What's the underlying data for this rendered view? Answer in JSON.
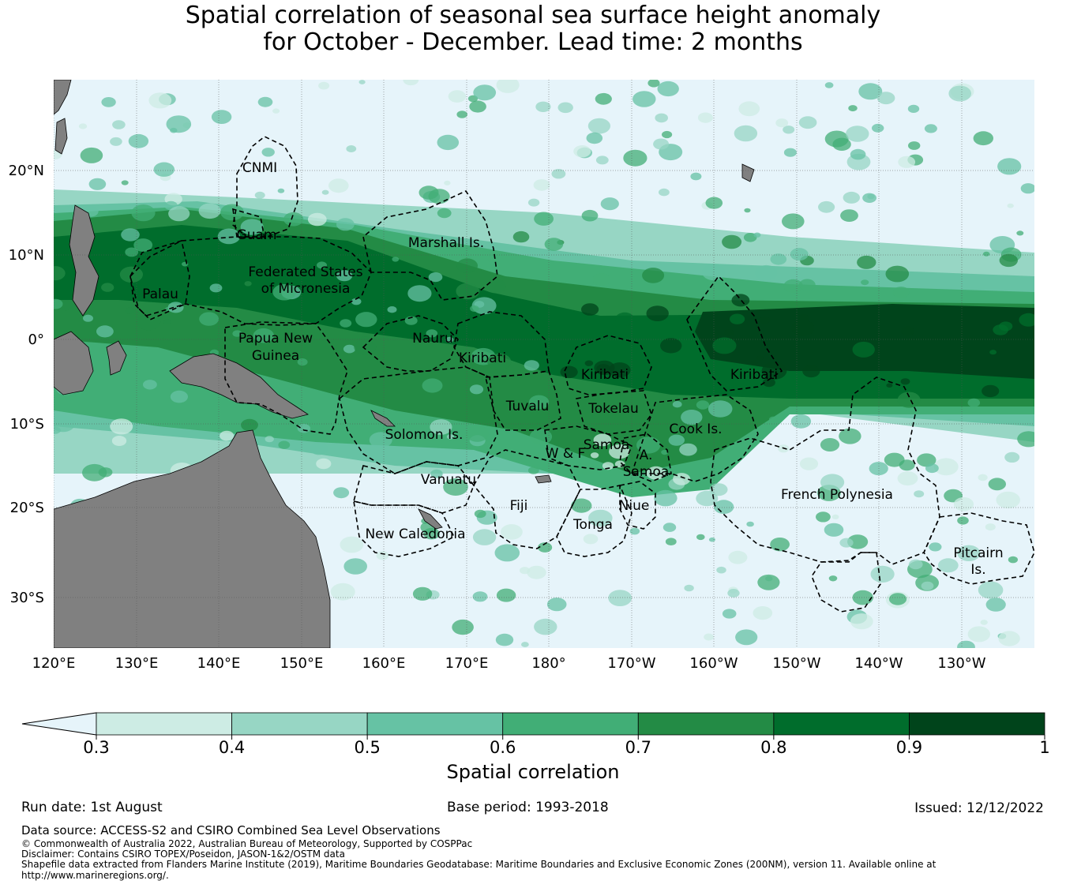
{
  "title": {
    "line1": "Spatial correlation of seasonal sea surface height anomaly",
    "line2": "for October - December. Lead time: 2 months"
  },
  "colors": {
    "ocean_low": "#e6f4fa",
    "land": "#808080",
    "levels": [
      "#cdece4",
      "#97d6c4",
      "#66c2a4",
      "#41ae76",
      "#238b45",
      "#006d2c",
      "#00441b"
    ]
  },
  "map": {
    "lat_labels": [
      "20°N",
      "10°N",
      "0°",
      "10°S",
      "20°S",
      "30°S"
    ],
    "lon_labels": [
      "120°E",
      "130°E",
      "140°E",
      "150°E",
      "160°E",
      "170°E",
      "180°",
      "170°W",
      "160°W",
      "150°W",
      "140°W",
      "130°W"
    ],
    "regions": [
      {
        "name": "CNMI"
      },
      {
        "name": "Guam"
      },
      {
        "name": "Marshall Is."
      },
      {
        "name": "Federated States"
      },
      {
        "name": "of Micronesia"
      },
      {
        "name": "Palau"
      },
      {
        "name": "Papua New"
      },
      {
        "name": "Guinea"
      },
      {
        "name": "Nauru"
      },
      {
        "name": "Kiribati"
      },
      {
        "name": "Kiribati"
      },
      {
        "name": "Kiribati"
      },
      {
        "name": "Tuvalu"
      },
      {
        "name": "Tokelau"
      },
      {
        "name": "Solomon Is."
      },
      {
        "name": "Samoa"
      },
      {
        "name": "W & F"
      },
      {
        "name": "A."
      },
      {
        "name": "Samoa"
      },
      {
        "name": "Cook Is."
      },
      {
        "name": "Vanuatu"
      },
      {
        "name": "Fiji"
      },
      {
        "name": "Niue"
      },
      {
        "name": "Tonga"
      },
      {
        "name": "French Polynesia"
      },
      {
        "name": "New Caledonia"
      },
      {
        "name": "Pitcairn"
      },
      {
        "name": "Is."
      }
    ]
  },
  "colorbar": {
    "ticks": [
      "0.3",
      "0.4",
      "0.5",
      "0.6",
      "0.7",
      "0.8",
      "0.9",
      "1"
    ],
    "label": "Spatial correlation"
  },
  "footer": {
    "run_date": "Run date: 1st August",
    "base_period": "Base period: 1993-2018",
    "issued": "Issued: 12/12/2022",
    "data_source": "Data source: ACCESS-S2 and CSIRO Combined Sea Level Observations",
    "copyright": "© Commonwealth of Australia 2022, Australian Bureau of Meteorology, Supported by COSPPac",
    "disclaimer": "Disclaimer: Contains CSIRO TOPEX/Poseidon, JASON-1&2/OSTM data",
    "shapefile1": "Shapefile data extracted from Flanders Marine Institute (2019), Maritime Boundaries Geodatabase: Maritime Boundaries and Exclusive Economic Zones (200NM), version 11. Available online at",
    "shapefile2": "http://www.marineregions.org/."
  }
}
